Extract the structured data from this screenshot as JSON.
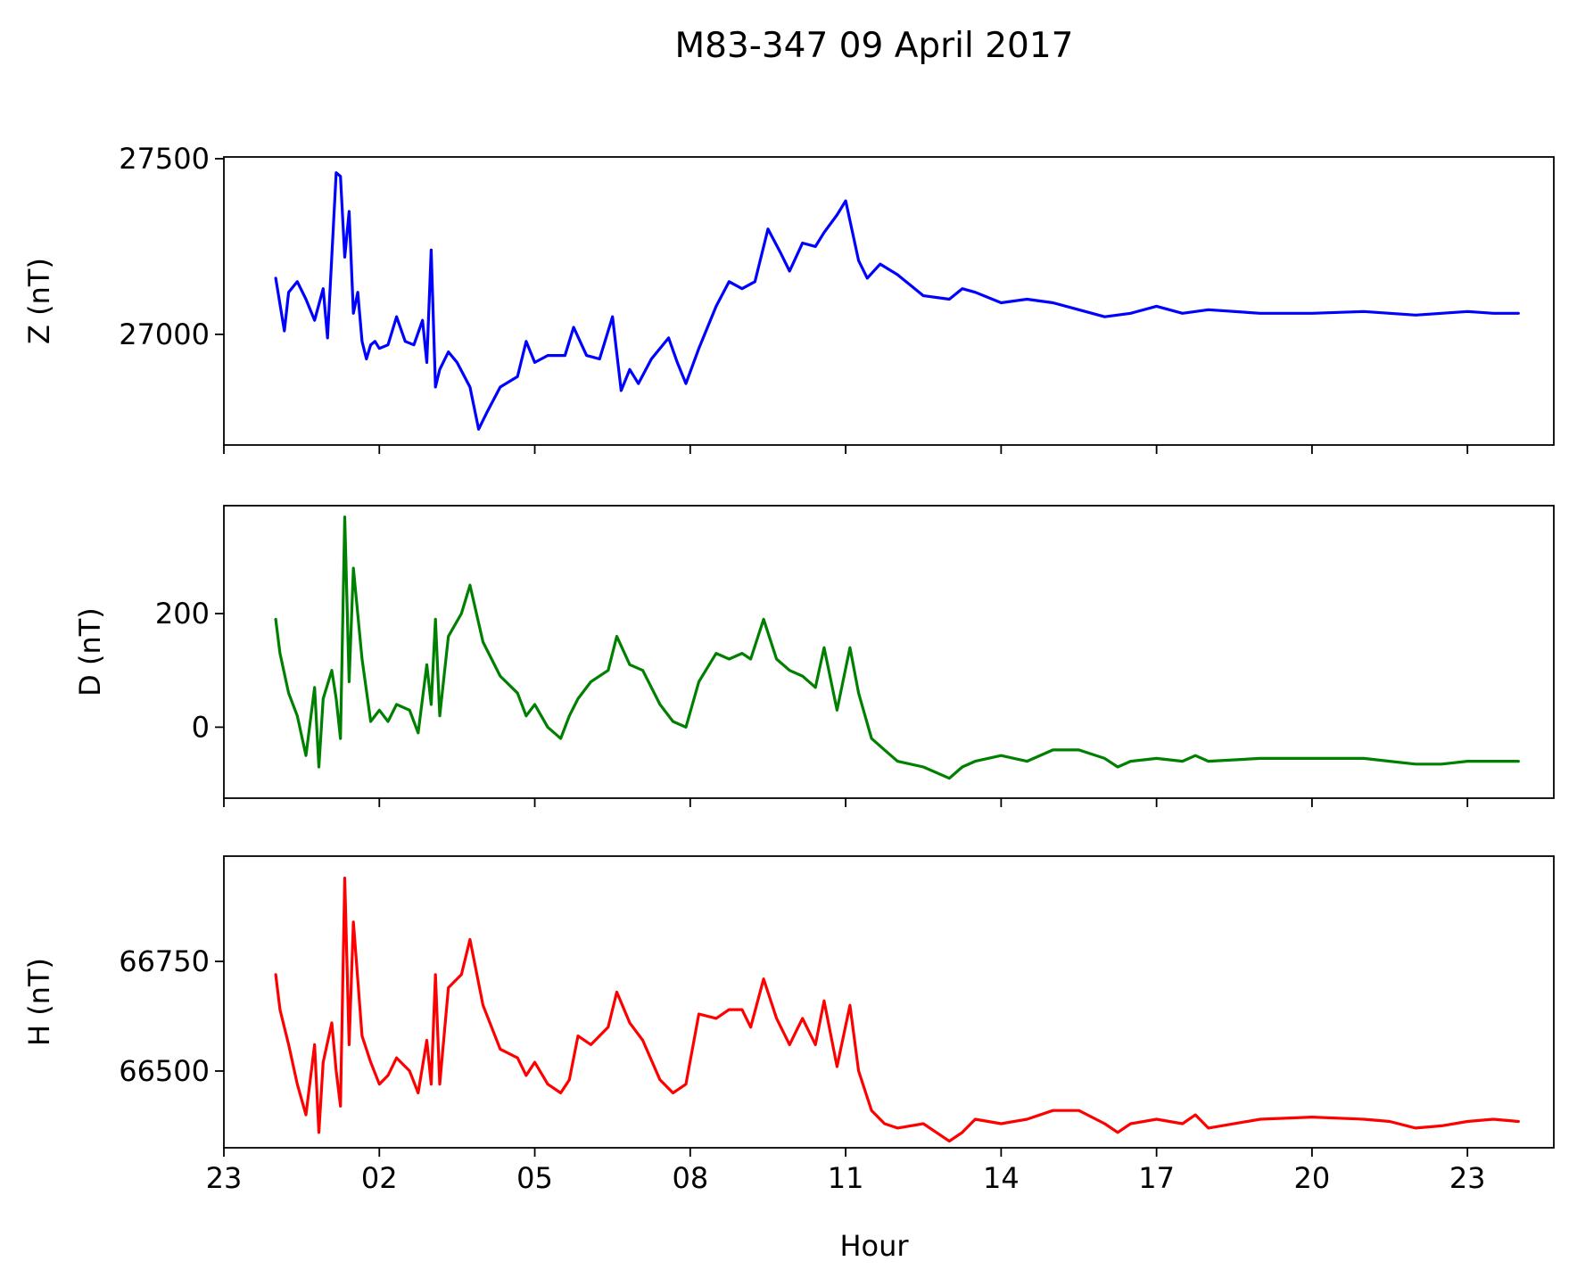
{
  "chart_data": {
    "title": "M83-347 09 April 2017",
    "xlabel": "Hour",
    "x_domain": [
      "2017-04-08T23:00",
      "2017-04-10T00:40"
    ],
    "x_ticks": [
      {
        "t": "2017-04-08T23:00",
        "label": "23"
      },
      {
        "t": "2017-04-09T02:00",
        "label": "02"
      },
      {
        "t": "2017-04-09T05:00",
        "label": "05"
      },
      {
        "t": "2017-04-09T08:00",
        "label": "08"
      },
      {
        "t": "2017-04-09T11:00",
        "label": "11"
      },
      {
        "t": "2017-04-09T14:00",
        "label": "14"
      },
      {
        "t": "2017-04-09T17:00",
        "label": "17"
      },
      {
        "t": "2017-04-09T20:00",
        "label": "20"
      },
      {
        "t": "2017-04-09T23:00",
        "label": "23"
      }
    ],
    "panels": [
      {
        "type": "line",
        "ylabel": "Z (nT)",
        "color": "#0000ff",
        "ylim": [
          26685,
          27505
        ],
        "yticks": [
          27000,
          27500
        ],
        "x": [
          "2017-04-09T00:00",
          "2017-04-09T00:10",
          "2017-04-09T00:15",
          "2017-04-09T00:25",
          "2017-04-09T00:35",
          "2017-04-09T00:45",
          "2017-04-09T00:55",
          "2017-04-09T01:00",
          "2017-04-09T01:10",
          "2017-04-09T01:15",
          "2017-04-09T01:20",
          "2017-04-09T01:25",
          "2017-04-09T01:30",
          "2017-04-09T01:35",
          "2017-04-09T01:40",
          "2017-04-09T01:45",
          "2017-04-09T01:50",
          "2017-04-09T01:55",
          "2017-04-09T02:00",
          "2017-04-09T02:10",
          "2017-04-09T02:20",
          "2017-04-09T02:30",
          "2017-04-09T02:40",
          "2017-04-09T02:50",
          "2017-04-09T02:55",
          "2017-04-09T03:00",
          "2017-04-09T03:05",
          "2017-04-09T03:10",
          "2017-04-09T03:20",
          "2017-04-09T03:30",
          "2017-04-09T03:45",
          "2017-04-09T03:55",
          "2017-04-09T04:05",
          "2017-04-09T04:20",
          "2017-04-09T04:40",
          "2017-04-09T04:50",
          "2017-04-09T05:00",
          "2017-04-09T05:15",
          "2017-04-09T05:35",
          "2017-04-09T05:45",
          "2017-04-09T06:00",
          "2017-04-09T06:15",
          "2017-04-09T06:30",
          "2017-04-09T06:40",
          "2017-04-09T06:50",
          "2017-04-09T07:00",
          "2017-04-09T07:15",
          "2017-04-09T07:35",
          "2017-04-09T07:45",
          "2017-04-09T07:55",
          "2017-04-09T08:10",
          "2017-04-09T08:30",
          "2017-04-09T08:45",
          "2017-04-09T09:00",
          "2017-04-09T09:15",
          "2017-04-09T09:30",
          "2017-04-09T09:45",
          "2017-04-09T09:55",
          "2017-04-09T10:10",
          "2017-04-09T10:25",
          "2017-04-09T10:35",
          "2017-04-09T10:50",
          "2017-04-09T11:00",
          "2017-04-09T11:15",
          "2017-04-09T11:25",
          "2017-04-09T11:40",
          "2017-04-09T12:00",
          "2017-04-09T12:30",
          "2017-04-09T13:00",
          "2017-04-09T13:15",
          "2017-04-09T13:30",
          "2017-04-09T14:00",
          "2017-04-09T14:30",
          "2017-04-09T15:00",
          "2017-04-09T15:30",
          "2017-04-09T16:00",
          "2017-04-09T16:30",
          "2017-04-09T17:00",
          "2017-04-09T17:30",
          "2017-04-09T18:00",
          "2017-04-09T19:00",
          "2017-04-09T20:00",
          "2017-04-09T21:00",
          "2017-04-09T21:30",
          "2017-04-09T22:00",
          "2017-04-09T22:30",
          "2017-04-09T23:00",
          "2017-04-09T23:30",
          "2017-04-09T23:59"
        ],
        "y": [
          27160,
          27010,
          27120,
          27150,
          27100,
          27040,
          27130,
          26990,
          27460,
          27450,
          27220,
          27350,
          27060,
          27120,
          26980,
          26930,
          26970,
          26980,
          26960,
          26970,
          27050,
          26980,
          26970,
          27040,
          26920,
          27240,
          26850,
          26900,
          26950,
          26920,
          26850,
          26730,
          26780,
          26850,
          26880,
          26980,
          26920,
          26940,
          26940,
          27020,
          26940,
          26930,
          27050,
          26840,
          26900,
          26860,
          26930,
          26990,
          26920,
          26860,
          26960,
          27080,
          27150,
          27130,
          27150,
          27300,
          27230,
          27180,
          27260,
          27250,
          27290,
          27340,
          27380,
          27210,
          27160,
          27200,
          27170,
          27110,
          27100,
          27130,
          27120,
          27090,
          27100,
          27090,
          27070,
          27050,
          27060,
          27080,
          27060,
          27070,
          27060,
          27060,
          27065,
          27060,
          27055,
          27060,
          27065,
          27060,
          27060
        ]
      },
      {
        "type": "line",
        "ylabel": "D (nT)",
        "color": "#008000",
        "ylim": [
          -125,
          390
        ],
        "yticks": [
          0,
          200
        ],
        "x": [
          "2017-04-09T00:00",
          "2017-04-09T00:05",
          "2017-04-09T00:15",
          "2017-04-09T00:25",
          "2017-04-09T00:35",
          "2017-04-09T00:45",
          "2017-04-09T00:50",
          "2017-04-09T00:55",
          "2017-04-09T01:05",
          "2017-04-09T01:10",
          "2017-04-09T01:15",
          "2017-04-09T01:20",
          "2017-04-09T01:25",
          "2017-04-09T01:30",
          "2017-04-09T01:40",
          "2017-04-09T01:50",
          "2017-04-09T02:00",
          "2017-04-09T02:10",
          "2017-04-09T02:20",
          "2017-04-09T02:35",
          "2017-04-09T02:45",
          "2017-04-09T02:55",
          "2017-04-09T03:00",
          "2017-04-09T03:05",
          "2017-04-09T03:10",
          "2017-04-09T03:20",
          "2017-04-09T03:35",
          "2017-04-09T03:45",
          "2017-04-09T04:00",
          "2017-04-09T04:20",
          "2017-04-09T04:40",
          "2017-04-09T04:50",
          "2017-04-09T05:00",
          "2017-04-09T05:15",
          "2017-04-09T05:30",
          "2017-04-09T05:40",
          "2017-04-09T05:50",
          "2017-04-09T06:05",
          "2017-04-09T06:25",
          "2017-04-09T06:35",
          "2017-04-09T06:50",
          "2017-04-09T07:05",
          "2017-04-09T07:25",
          "2017-04-09T07:40",
          "2017-04-09T07:55",
          "2017-04-09T08:10",
          "2017-04-09T08:30",
          "2017-04-09T08:45",
          "2017-04-09T09:00",
          "2017-04-09T09:10",
          "2017-04-09T09:25",
          "2017-04-09T09:40",
          "2017-04-09T09:55",
          "2017-04-09T10:10",
          "2017-04-09T10:25",
          "2017-04-09T10:35",
          "2017-04-09T10:50",
          "2017-04-09T11:05",
          "2017-04-09T11:15",
          "2017-04-09T11:30",
          "2017-04-09T11:45",
          "2017-04-09T12:00",
          "2017-04-09T12:30",
          "2017-04-09T13:00",
          "2017-04-09T13:15",
          "2017-04-09T13:30",
          "2017-04-09T14:00",
          "2017-04-09T14:30",
          "2017-04-09T15:00",
          "2017-04-09T15:30",
          "2017-04-09T16:00",
          "2017-04-09T16:15",
          "2017-04-09T16:30",
          "2017-04-09T17:00",
          "2017-04-09T17:30",
          "2017-04-09T17:45",
          "2017-04-09T18:00",
          "2017-04-09T19:00",
          "2017-04-09T20:00",
          "2017-04-09T21:00",
          "2017-04-09T21:30",
          "2017-04-09T22:00",
          "2017-04-09T22:30",
          "2017-04-09T23:00",
          "2017-04-09T23:30",
          "2017-04-09T23:59"
        ],
        "y": [
          190,
          130,
          60,
          20,
          -50,
          70,
          -70,
          50,
          100,
          50,
          -20,
          370,
          80,
          280,
          120,
          10,
          30,
          10,
          40,
          30,
          -10,
          110,
          40,
          190,
          20,
          160,
          200,
          250,
          150,
          90,
          60,
          20,
          40,
          0,
          -20,
          20,
          50,
          80,
          100,
          160,
          110,
          100,
          40,
          10,
          0,
          80,
          130,
          120,
          130,
          120,
          190,
          120,
          100,
          90,
          70,
          140,
          30,
          140,
          60,
          -20,
          -40,
          -60,
          -70,
          -90,
          -70,
          -60,
          -50,
          -60,
          -40,
          -40,
          -55,
          -70,
          -60,
          -55,
          -60,
          -50,
          -60,
          -55,
          -55,
          -55,
          -60,
          -65,
          -65,
          -60,
          -60,
          -60
        ]
      },
      {
        "type": "line",
        "ylabel": "H (nT)",
        "color": "#ff0000",
        "ylim": [
          66325,
          66990
        ],
        "yticks": [
          66500,
          66750
        ],
        "x": [
          "2017-04-09T00:00",
          "2017-04-09T00:05",
          "2017-04-09T00:15",
          "2017-04-09T00:25",
          "2017-04-09T00:35",
          "2017-04-09T00:45",
          "2017-04-09T00:50",
          "2017-04-09T00:55",
          "2017-04-09T01:05",
          "2017-04-09T01:10",
          "2017-04-09T01:15",
          "2017-04-09T01:20",
          "2017-04-09T01:25",
          "2017-04-09T01:30",
          "2017-04-09T01:40",
          "2017-04-09T01:50",
          "2017-04-09T02:00",
          "2017-04-09T02:10",
          "2017-04-09T02:20",
          "2017-04-09T02:35",
          "2017-04-09T02:45",
          "2017-04-09T02:55",
          "2017-04-09T03:00",
          "2017-04-09T03:05",
          "2017-04-09T03:10",
          "2017-04-09T03:20",
          "2017-04-09T03:35",
          "2017-04-09T03:45",
          "2017-04-09T04:00",
          "2017-04-09T04:20",
          "2017-04-09T04:40",
          "2017-04-09T04:50",
          "2017-04-09T05:00",
          "2017-04-09T05:15",
          "2017-04-09T05:30",
          "2017-04-09T05:40",
          "2017-04-09T05:50",
          "2017-04-09T06:05",
          "2017-04-09T06:25",
          "2017-04-09T06:35",
          "2017-04-09T06:50",
          "2017-04-09T07:05",
          "2017-04-09T07:25",
          "2017-04-09T07:40",
          "2017-04-09T07:55",
          "2017-04-09T08:10",
          "2017-04-09T08:30",
          "2017-04-09T08:45",
          "2017-04-09T09:00",
          "2017-04-09T09:10",
          "2017-04-09T09:25",
          "2017-04-09T09:40",
          "2017-04-09T09:55",
          "2017-04-09T10:10",
          "2017-04-09T10:25",
          "2017-04-09T10:35",
          "2017-04-09T10:50",
          "2017-04-09T11:05",
          "2017-04-09T11:15",
          "2017-04-09T11:30",
          "2017-04-09T11:45",
          "2017-04-09T12:00",
          "2017-04-09T12:30",
          "2017-04-09T13:00",
          "2017-04-09T13:15",
          "2017-04-09T13:30",
          "2017-04-09T14:00",
          "2017-04-09T14:30",
          "2017-04-09T15:00",
          "2017-04-09T15:30",
          "2017-04-09T16:00",
          "2017-04-09T16:15",
          "2017-04-09T16:30",
          "2017-04-09T17:00",
          "2017-04-09T17:30",
          "2017-04-09T17:45",
          "2017-04-09T18:00",
          "2017-04-09T19:00",
          "2017-04-09T20:00",
          "2017-04-09T21:00",
          "2017-04-09T21:30",
          "2017-04-09T22:00",
          "2017-04-09T22:30",
          "2017-04-09T23:00",
          "2017-04-09T23:30",
          "2017-04-09T23:59"
        ],
        "y": [
          66720,
          66640,
          66560,
          66470,
          66400,
          66560,
          66360,
          66520,
          66610,
          66500,
          66420,
          66940,
          66560,
          66840,
          66580,
          66520,
          66470,
          66490,
          66530,
          66500,
          66450,
          66570,
          66470,
          66720,
          66470,
          66690,
          66720,
          66800,
          66650,
          66550,
          66530,
          66490,
          66520,
          66470,
          66450,
          66480,
          66580,
          66560,
          66600,
          66680,
          66610,
          66570,
          66480,
          66450,
          66470,
          66630,
          66620,
          66640,
          66640,
          66600,
          66710,
          66620,
          66560,
          66620,
          66560,
          66660,
          66510,
          66650,
          66500,
          66410,
          66380,
          66370,
          66380,
          66340,
          66360,
          66390,
          66380,
          66390,
          66410,
          66410,
          66380,
          66360,
          66380,
          66390,
          66380,
          66400,
          66370,
          66390,
          66395,
          66390,
          66385,
          66370,
          66375,
          66385,
          66390,
          66385
        ]
      }
    ]
  }
}
